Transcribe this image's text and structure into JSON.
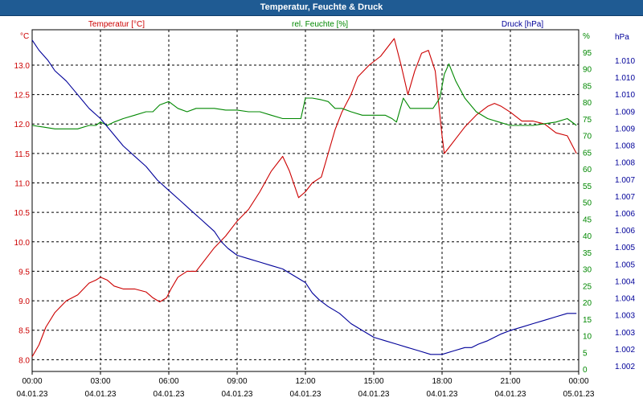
{
  "window": {
    "title": "Temperatur, Feuchte & Druck"
  },
  "chart_data": {
    "type": "line",
    "title": "Temperatur, Feuchte & Druck",
    "x_unit": "hours since 04.01.23 00:00",
    "x_range": [
      0,
      24
    ],
    "grid": true,
    "x_ticks": [
      {
        "time": "00:00",
        "date": "04.01.23"
      },
      {
        "time": "03:00",
        "date": "04.01.23"
      },
      {
        "time": "06:00",
        "date": "04.01.23"
      },
      {
        "time": "09:00",
        "date": "04.01.23"
      },
      {
        "time": "12:00",
        "date": "04.01.23"
      },
      {
        "time": "15:00",
        "date": "04.01.23"
      },
      {
        "time": "18:00",
        "date": "04.01.23"
      },
      {
        "time": "21:00",
        "date": "04.01.23"
      },
      {
        "time": "00:00",
        "date": "05.01.23"
      }
    ],
    "axes": {
      "temperature": {
        "unit": "°C",
        "ylim": [
          7.8,
          13.6
        ],
        "color": "#cc0000",
        "ticks": [
          "8.0",
          "8.5",
          "9.0",
          "9.5",
          "10.0",
          "10.5",
          "11.0",
          "11.5",
          "12.0",
          "12.5",
          "13.0"
        ]
      },
      "humidity": {
        "unit": "%",
        "ylim": [
          0,
          100
        ],
        "color": "#008800",
        "ticks": [
          "0",
          "5",
          "10",
          "15",
          "20",
          "25",
          "30",
          "35",
          "40",
          "45",
          "50",
          "55",
          "60",
          "65",
          "70",
          "75",
          "80",
          "85",
          "90",
          "95",
          "%"
        ]
      },
      "pressure": {
        "unit": "hPa",
        "ylim": [
          0,
          100
        ],
        "color": "#000099",
        "ticks": [
          "1.002",
          "1.002",
          "1.003",
          "1.003",
          "1.004",
          "1.004",
          "1.005",
          "1.005",
          "1.006",
          "1.006",
          "1.007",
          "1.007",
          "1.008",
          "1.008",
          "1.009",
          "1.009",
          "1.010",
          "1.010",
          "1.010"
        ]
      }
    },
    "series": [
      {
        "name": "Temperatur [°C]",
        "axis": "temperature",
        "color": "#cc0000",
        "x": [
          0,
          0.3,
          0.6,
          1.0,
          1.5,
          2.0,
          2.5,
          2.8,
          3.0,
          3.3,
          3.6,
          4.0,
          4.5,
          5.0,
          5.3,
          5.6,
          5.9,
          6.1,
          6.4,
          6.8,
          7.2,
          7.6,
          8.0,
          8.5,
          9.0,
          9.5,
          10.0,
          10.5,
          11.0,
          11.3,
          11.7,
          12.0,
          12.3,
          12.7,
          13.0,
          13.3,
          13.6,
          14.0,
          14.3,
          14.8,
          15.3,
          15.6,
          15.9,
          16.2,
          16.5,
          16.8,
          17.1,
          17.4,
          17.7,
          18.0,
          18.1,
          18.3,
          18.6,
          19.0,
          19.5,
          20.0,
          20.3,
          20.6,
          21.0,
          21.5,
          22.0,
          22.5,
          23.0,
          23.5,
          23.9
        ],
        "values": [
          8.05,
          8.25,
          8.55,
          8.8,
          9.0,
          9.1,
          9.3,
          9.35,
          9.4,
          9.35,
          9.25,
          9.2,
          9.2,
          9.15,
          9.05,
          8.98,
          9.05,
          9.2,
          9.4,
          9.5,
          9.5,
          9.7,
          9.9,
          10.1,
          10.35,
          10.55,
          10.85,
          11.2,
          11.45,
          11.2,
          10.75,
          10.85,
          11.0,
          11.1,
          11.5,
          11.9,
          12.2,
          12.5,
          12.8,
          13.0,
          13.15,
          13.3,
          13.45,
          13.0,
          12.5,
          12.9,
          13.2,
          13.25,
          12.9,
          11.8,
          11.5,
          11.6,
          11.75,
          11.95,
          12.15,
          12.3,
          12.35,
          12.3,
          12.2,
          12.05,
          12.05,
          12.0,
          11.85,
          11.8,
          11.5
        ]
      },
      {
        "name": "rel. Feuchte [%]",
        "axis": "humidity",
        "color": "#008800",
        "x": [
          0,
          0.5,
          1.0,
          1.5,
          2.0,
          2.5,
          2.8,
          3.0,
          3.3,
          3.6,
          4.0,
          4.5,
          5.0,
          5.3,
          5.6,
          6.0,
          6.4,
          6.8,
          7.2,
          7.6,
          8.0,
          8.5,
          9.0,
          9.5,
          10.0,
          10.5,
          11.0,
          11.5,
          11.8,
          12.0,
          12.3,
          12.7,
          13.0,
          13.3,
          13.6,
          14.0,
          14.5,
          15.0,
          15.5,
          15.8,
          16.0,
          16.3,
          16.6,
          17.0,
          17.3,
          17.6,
          17.9,
          18.1,
          18.3,
          18.6,
          19.0,
          19.5,
          20.0,
          20.5,
          21.0,
          21.5,
          22.0,
          22.5,
          23.0,
          23.5,
          23.9
        ],
        "values": [
          72,
          71.5,
          71,
          71,
          71,
          72,
          72,
          73,
          72,
          73,
          74,
          75,
          76,
          76,
          78,
          79,
          77,
          76,
          77,
          77,
          77,
          76.5,
          76.5,
          76,
          76,
          75,
          74,
          74,
          74,
          80,
          80,
          79.5,
          79,
          77,
          77,
          76,
          75,
          75,
          75,
          74,
          73,
          80,
          77,
          77,
          77,
          77,
          80,
          87,
          90,
          85,
          80,
          76,
          74,
          73,
          72,
          72,
          72,
          72.5,
          73,
          74,
          72
        ]
      },
      {
        "name": "Druck [hPa]",
        "axis": "pressure",
        "color": "#000099",
        "x": [
          0,
          0.3,
          0.7,
          1.0,
          1.5,
          2.0,
          2.5,
          3.0,
          3.5,
          4.0,
          4.5,
          5.0,
          5.5,
          6.0,
          6.5,
          7.0,
          7.5,
          8.0,
          8.3,
          8.6,
          9.0,
          9.5,
          10.0,
          10.5,
          11.0,
          11.5,
          12.0,
          12.3,
          12.6,
          13.0,
          13.5,
          14.0,
          14.5,
          15.0,
          15.5,
          16.0,
          16.5,
          17.0,
          17.5,
          18.0,
          18.5,
          19.0,
          19.3,
          19.6,
          20.0,
          20.3,
          20.6,
          21.0,
          21.5,
          22.0,
          22.5,
          23.0,
          23.5,
          23.9
        ],
        "values": [
          97,
          94,
          91,
          88,
          85,
          81,
          77,
          74,
          70,
          66,
          63,
          60,
          56,
          53,
          50,
          47,
          44,
          41,
          38,
          36,
          34,
          33,
          32,
          31,
          30,
          28,
          26,
          23,
          21,
          19,
          17,
          14,
          12,
          10,
          9,
          8,
          7,
          6,
          5,
          5,
          6,
          7,
          7,
          8,
          9,
          10,
          11,
          12,
          13,
          14,
          15,
          16,
          17,
          17
        ]
      }
    ]
  }
}
